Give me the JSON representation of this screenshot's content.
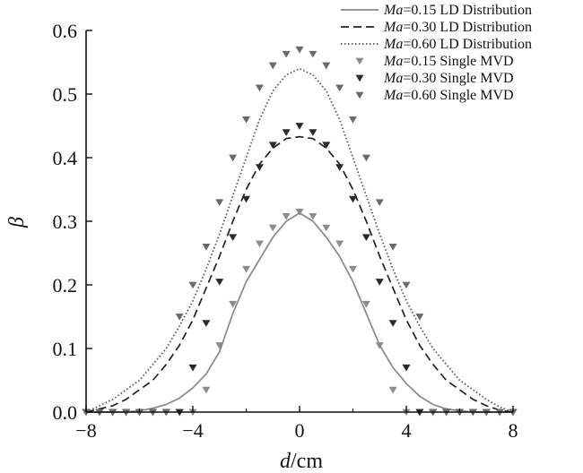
{
  "chart_data": {
    "type": "line",
    "xlabel": {
      "symbol": "d",
      "unit": "/cm"
    },
    "ylabel": "β",
    "xlim": [
      -8,
      8
    ],
    "ylim": [
      0,
      0.6
    ],
    "xticks": [
      "−8",
      "−4",
      "0",
      "4",
      "8"
    ],
    "yticks": [
      "0.0",
      "0.1",
      "0.2",
      "0.3",
      "0.4",
      "0.5",
      "0.6"
    ],
    "grid": false,
    "legend_position": "top-right",
    "series": [
      {
        "name": "Ma=0.15 LD Distribution",
        "name_italic": "Ma",
        "name_rest": "=0.15 LD Distribution",
        "kind": "line",
        "style": "solid",
        "color": "#888888",
        "x": [
          -8,
          -6.5,
          -6,
          -5.5,
          -5,
          -4.5,
          -4,
          -3.5,
          -3,
          -2.5,
          -2,
          -1.5,
          -1,
          -0.5,
          0,
          0.5,
          1,
          1.5,
          2,
          2.5,
          3,
          3.5,
          4,
          4.5,
          5,
          5.5,
          6,
          6.5,
          8
        ],
        "y": [
          0,
          0,
          0.002,
          0.006,
          0.012,
          0.022,
          0.038,
          0.06,
          0.095,
          0.155,
          0.205,
          0.24,
          0.275,
          0.3,
          0.313,
          0.3,
          0.275,
          0.245,
          0.205,
          0.155,
          0.105,
          0.07,
          0.045,
          0.025,
          0.012,
          0.005,
          0.002,
          0,
          0
        ]
      },
      {
        "name": "Ma=0.30 LD Distribution",
        "name_italic": "Ma",
        "name_rest": "=0.30 LD Distribution",
        "kind": "line",
        "style": "dashed",
        "color": "#222222",
        "x": [
          -8,
          -7.5,
          -7,
          -6.5,
          -6,
          -5.5,
          -5,
          -4.5,
          -4,
          -3.5,
          -3,
          -2.5,
          -2,
          -1.5,
          -1,
          -0.5,
          0,
          0.5,
          1,
          1.5,
          2,
          2.5,
          3,
          3.5,
          4,
          4.5,
          5,
          5.5,
          6,
          6.5,
          7,
          7.5,
          8
        ],
        "y": [
          0,
          0.005,
          0.01,
          0.02,
          0.035,
          0.05,
          0.075,
          0.105,
          0.145,
          0.195,
          0.245,
          0.3,
          0.35,
          0.39,
          0.415,
          0.43,
          0.433,
          0.43,
          0.415,
          0.39,
          0.35,
          0.3,
          0.245,
          0.195,
          0.145,
          0.105,
          0.075,
          0.05,
          0.035,
          0.02,
          0.01,
          0.003,
          0
        ]
      },
      {
        "name": "Ma=0.60 LD Distribution",
        "name_italic": "Ma",
        "name_rest": "=0.60 LD Distribution",
        "kind": "line",
        "style": "dotted",
        "color": "#555555",
        "x": [
          -8,
          -7.5,
          -7,
          -6.5,
          -6,
          -5.5,
          -5,
          -4.5,
          -4,
          -3.5,
          -3,
          -2.5,
          -2,
          -1.5,
          -1,
          -0.5,
          0,
          0.5,
          1,
          1.5,
          2,
          2.5,
          3,
          3.5,
          4,
          4.5,
          5,
          5.5,
          6,
          6.5,
          7,
          7.5,
          8
        ],
        "y": [
          0,
          0.01,
          0.02,
          0.035,
          0.05,
          0.075,
          0.1,
          0.135,
          0.175,
          0.225,
          0.28,
          0.34,
          0.4,
          0.46,
          0.505,
          0.53,
          0.54,
          0.53,
          0.505,
          0.46,
          0.4,
          0.34,
          0.28,
          0.225,
          0.175,
          0.135,
          0.1,
          0.075,
          0.05,
          0.035,
          0.02,
          0.008,
          0
        ]
      },
      {
        "name": "Ma=0.15 Single MVD",
        "name_italic": "Ma",
        "name_rest": "=0.15 Single MVD",
        "kind": "marker",
        "color": "#8c8c8c",
        "x": [
          -8,
          -7.5,
          -7,
          -6.5,
          -6,
          -5.5,
          -5,
          -4.5,
          -4,
          -3.5,
          -3,
          -2.5,
          -2,
          -1.5,
          -1,
          -0.5,
          0,
          0.5,
          1,
          1.5,
          2,
          2.5,
          3,
          3.5,
          4,
          4.5,
          5,
          5.5,
          6,
          6.5,
          7,
          7.5,
          8
        ],
        "y": [
          0,
          0,
          0,
          0,
          0,
          0,
          0,
          0,
          0,
          0.035,
          0.105,
          0.17,
          0.225,
          0.265,
          0.29,
          0.308,
          0.315,
          0.308,
          0.29,
          0.265,
          0.225,
          0.17,
          0.105,
          0.035,
          0,
          0,
          0,
          0,
          0,
          0,
          0,
          0,
          0
        ]
      },
      {
        "name": "Ma=0.30 Single MVD",
        "name_italic": "Ma",
        "name_rest": "=0.30 Single MVD",
        "kind": "marker",
        "color": "#2a2a2a",
        "x": [
          -8,
          -7.5,
          -7,
          -6.5,
          -6,
          -5.5,
          -5,
          -4.5,
          -4,
          -3.5,
          -3,
          -2.5,
          -2,
          -1.5,
          -1,
          -0.5,
          0,
          0.5,
          1,
          1.5,
          2,
          2.5,
          3,
          3.5,
          4,
          4.5,
          5,
          5.5,
          6,
          6.5,
          7,
          7.5,
          8
        ],
        "y": [
          0,
          0,
          0,
          0,
          0,
          0,
          0,
          0,
          0.07,
          0.14,
          0.205,
          0.275,
          0.335,
          0.385,
          0.42,
          0.44,
          0.45,
          0.44,
          0.42,
          0.385,
          0.335,
          0.275,
          0.205,
          0.14,
          0.07,
          0,
          0,
          0,
          0,
          0,
          0,
          0,
          0
        ]
      },
      {
        "name": "Ma=0.60 Single MVD",
        "name_italic": "Ma",
        "name_rest": "=0.60 Single MVD",
        "kind": "marker",
        "color": "#6a6a6a",
        "x": [
          -8,
          -7.5,
          -7,
          -6.5,
          -6,
          -5.5,
          -5,
          -4.5,
          -4,
          -3.5,
          -3,
          -2.5,
          -2,
          -1.5,
          -1,
          -0.5,
          0,
          0.5,
          1,
          1.5,
          2,
          2.5,
          3,
          3.5,
          4,
          4.5,
          5,
          5.5,
          6,
          6.5,
          7,
          7.5,
          8
        ],
        "y": [
          0,
          0,
          0,
          0,
          0,
          0,
          0,
          0.15,
          0.2,
          0.26,
          0.33,
          0.4,
          0.46,
          0.51,
          0.545,
          0.563,
          0.57,
          0.563,
          0.545,
          0.51,
          0.46,
          0.4,
          0.33,
          0.26,
          0.2,
          0.15,
          0,
          0,
          0,
          0,
          0,
          0,
          0
        ]
      }
    ]
  }
}
